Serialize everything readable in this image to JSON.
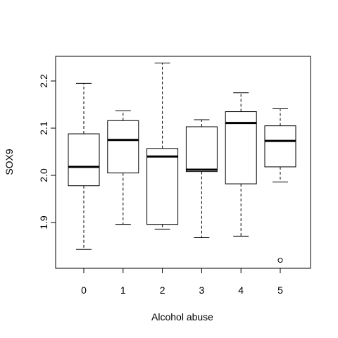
{
  "chart_data": {
    "type": "boxplot",
    "xlabel": "Alcohol abuse",
    "ylabel": "SOX9",
    "categories": [
      "0",
      "1",
      "2",
      "3",
      "4",
      "5"
    ],
    "ylim": [
      1.8,
      2.25
    ],
    "yticks": [
      "1.9",
      "2.0",
      "2.1",
      "2.2"
    ],
    "ytick_values": [
      1.9,
      2.0,
      2.1,
      2.2
    ],
    "grid": false,
    "boxes": [
      {
        "category": "0",
        "whisker_low": 1.843,
        "q1": 1.978,
        "median": 2.018,
        "q3": 2.088,
        "whisker_high": 2.195,
        "outliers": []
      },
      {
        "category": "1",
        "whisker_low": 1.896,
        "q1": 2.005,
        "median": 2.075,
        "q3": 2.116,
        "whisker_high": 2.137,
        "outliers": []
      },
      {
        "category": "2",
        "whisker_low": 1.886,
        "q1": 1.896,
        "median": 2.04,
        "q3": 2.057,
        "whisker_high": 2.238,
        "outliers": []
      },
      {
        "category": "3",
        "whisker_low": 1.868,
        "q1": 2.008,
        "median": 2.012,
        "q3": 2.103,
        "whisker_high": 2.118,
        "outliers": []
      },
      {
        "category": "4",
        "whisker_low": 1.871,
        "q1": 1.982,
        "median": 2.111,
        "q3": 2.135,
        "whisker_high": 2.175,
        "outliers": []
      },
      {
        "category": "5",
        "whisker_low": 1.986,
        "q1": 2.018,
        "median": 2.073,
        "q3": 2.105,
        "whisker_high": 2.141,
        "outliers": [
          1.82
        ]
      }
    ]
  }
}
